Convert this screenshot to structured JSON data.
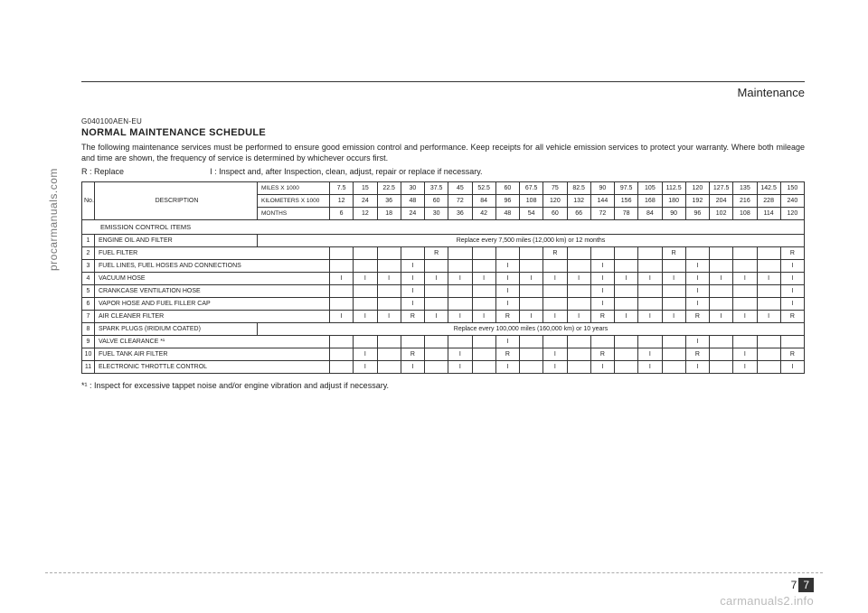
{
  "side_text": "procarmanuals.com",
  "section_label": "Maintenance",
  "code": "G040100AEN-EU",
  "title": "NORMAL MAINTENANCE SCHEDULE",
  "paragraph": "The following maintenance services must be performed to ensure good emission control and performance. Keep receipts for all vehicle emission services to protect your warranty. Where both mileage and time are shown, the frequency of service is determined by whichever occurs first.",
  "legend_r": "R : Replace",
  "legend_i": "I : Inspect and, after Inspection, clean, adjust, repair or replace if necessary.",
  "header_no": "No.",
  "header_desc": "DESCRIPTION",
  "interval_rows": [
    {
      "label": "MILES X 1000",
      "vals": [
        "7.5",
        "15",
        "22.5",
        "30",
        "37.5",
        "45",
        "52.5",
        "60",
        "67.5",
        "75",
        "82.5",
        "90",
        "97.5",
        "105",
        "112.5",
        "120",
        "127.5",
        "135",
        "142.5",
        "150"
      ]
    },
    {
      "label": "KILOMETERS X 1000",
      "vals": [
        "12",
        "24",
        "36",
        "48",
        "60",
        "72",
        "84",
        "96",
        "108",
        "120",
        "132",
        "144",
        "156",
        "168",
        "180",
        "192",
        "204",
        "216",
        "228",
        "240"
      ]
    },
    {
      "label": "MONTHS",
      "vals": [
        "6",
        "12",
        "18",
        "24",
        "30",
        "36",
        "42",
        "48",
        "54",
        "60",
        "66",
        "72",
        "78",
        "84",
        "90",
        "96",
        "102",
        "108",
        "114",
        "120"
      ]
    }
  ],
  "section_heading": "EMISSION CONTROL ITEMS",
  "rows": [
    {
      "n": "1",
      "desc": "ENGINE OIL AND FILTER",
      "span": "Replace every 7,500 miles (12,000 km) or 12 months"
    },
    {
      "n": "2",
      "desc": "FUEL FILTER",
      "cells": [
        "",
        "",
        "",
        "",
        "R",
        "",
        "",
        "",
        "",
        "R",
        "",
        "",
        "",
        "",
        "R",
        "",
        "",
        "",
        "",
        "R"
      ]
    },
    {
      "n": "3",
      "desc": "FUEL LINES, FUEL HOSES AND CONNECTIONS",
      "cells": [
        "",
        "",
        "",
        "I",
        "",
        "",
        "",
        "I",
        "",
        "",
        "",
        "I",
        "",
        "",
        "",
        "I",
        "",
        "",
        "",
        "I"
      ]
    },
    {
      "n": "4",
      "desc": "VACUUM HOSE",
      "cells": [
        "I",
        "I",
        "I",
        "I",
        "I",
        "I",
        "I",
        "I",
        "I",
        "I",
        "I",
        "I",
        "I",
        "I",
        "I",
        "I",
        "I",
        "I",
        "I",
        "I"
      ]
    },
    {
      "n": "5",
      "desc": "CRANKCASE VENTILATION HOSE",
      "cells": [
        "",
        "",
        "",
        "I",
        "",
        "",
        "",
        "I",
        "",
        "",
        "",
        "I",
        "",
        "",
        "",
        "I",
        "",
        "",
        "",
        "I"
      ]
    },
    {
      "n": "6",
      "desc": "VAPOR HOSE AND FUEL FILLER CAP",
      "cells": [
        "",
        "",
        "",
        "I",
        "",
        "",
        "",
        "I",
        "",
        "",
        "",
        "I",
        "",
        "",
        "",
        "I",
        "",
        "",
        "",
        "I"
      ]
    },
    {
      "n": "7",
      "desc": "AIR CLEANER FILTER",
      "cells": [
        "I",
        "I",
        "I",
        "R",
        "I",
        "I",
        "I",
        "R",
        "I",
        "I",
        "I",
        "R",
        "I",
        "I",
        "I",
        "R",
        "I",
        "I",
        "I",
        "R"
      ]
    },
    {
      "n": "8",
      "desc": "SPARK PLUGS (IRIDIUM COATED)",
      "span": "Replace every 100,000 miles (160,000 km) or 10 years"
    },
    {
      "n": "9",
      "desc": "VALVE CLEARANCE *¹",
      "cells": [
        "",
        "",
        "",
        "",
        "",
        "",
        "",
        "I",
        "",
        "",
        "",
        "",
        "",
        "",
        "",
        "I",
        "",
        "",
        "",
        ""
      ]
    },
    {
      "n": "10",
      "desc": "FUEL TANK AIR FILTER",
      "cells": [
        "",
        "I",
        "",
        "R",
        "",
        "I",
        "",
        "R",
        "",
        "I",
        "",
        "R",
        "",
        "I",
        "",
        "R",
        "",
        "I",
        "",
        "R"
      ]
    },
    {
      "n": "11",
      "desc": "ELECTRONIC THROTTLE CONTROL",
      "cells": [
        "",
        "I",
        "",
        "I",
        "",
        "I",
        "",
        "I",
        "",
        "I",
        "",
        "I",
        "",
        "I",
        "",
        "I",
        "",
        "I",
        "",
        "I"
      ]
    }
  ],
  "footnote": "*¹ : Inspect for excessive tappet noise and/or engine vibration and adjust if necessary.",
  "page_no_chapter": "7",
  "page_no_page": "7",
  "watermark": "carmanuals2.info"
}
